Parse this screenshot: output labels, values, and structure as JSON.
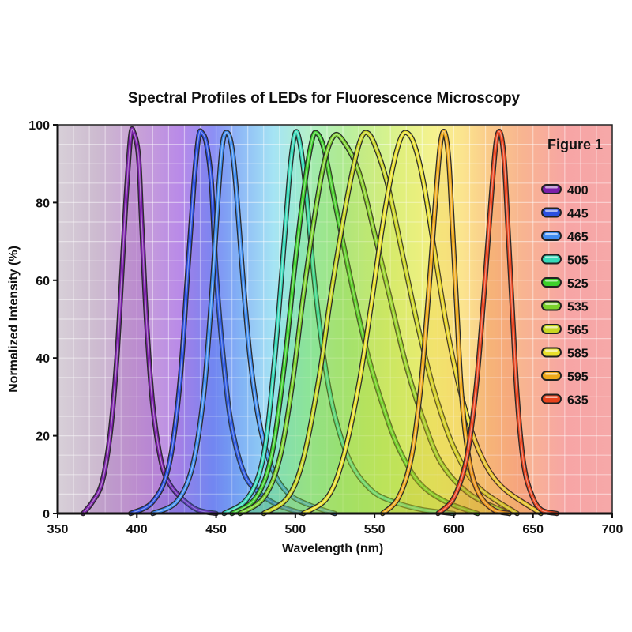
{
  "chart_data": {
    "type": "line",
    "title": "Spectral Profiles of LEDs for Fluorescence Microscopy",
    "figure_label": "Figure 1",
    "xlabel": "Wavelength (nm)",
    "ylabel": "Normalized Intensity (%)",
    "xlim": [
      350,
      700
    ],
    "ylim": [
      0,
      100
    ],
    "xticks": [
      "350",
      "400",
      "450",
      "500",
      "550",
      "600",
      "650",
      "700"
    ],
    "yticks": [
      "0",
      "20",
      "40",
      "60",
      "80",
      "100"
    ],
    "grid": true,
    "legend_position": "right",
    "background": "visible-spectrum gradient",
    "series": [
      {
        "name": "400",
        "color": "#7a1fa8",
        "x": [
          366,
          372,
          378,
          383,
          387,
          390,
          393,
          396,
          398,
          401,
          403,
          406,
          410,
          415,
          420,
          428,
          438,
          450
        ],
        "y": [
          0,
          3,
          8,
          20,
          38,
          58,
          80,
          97,
          98,
          92,
          75,
          50,
          28,
          14,
          8,
          4,
          1,
          0
        ]
      },
      {
        "name": "445",
        "color": "#2b4fe0",
        "x": [
          396,
          410,
          420,
          427,
          432,
          436,
          439,
          441,
          444,
          447,
          450,
          455,
          460,
          468,
          478,
          490,
          505
        ],
        "y": [
          0,
          3,
          12,
          33,
          62,
          85,
          97,
          98,
          95,
          85,
          62,
          38,
          22,
          10,
          5,
          2,
          0
        ]
      },
      {
        "name": "465",
        "color": "#3f8cf0",
        "x": [
          410,
          425,
          435,
          442,
          447,
          451,
          454,
          457,
          460,
          463,
          467,
          472,
          478,
          486,
          496,
          510,
          525
        ],
        "y": [
          0,
          3,
          12,
          30,
          55,
          80,
          95,
          98,
          94,
          82,
          60,
          38,
          22,
          11,
          5,
          2,
          0
        ]
      },
      {
        "name": "505",
        "color": "#35d9b8",
        "x": [
          455,
          470,
          480,
          487,
          493,
          497,
          500,
          503,
          507,
          512,
          518,
          525,
          535,
          548,
          562,
          580,
          600
        ],
        "y": [
          0,
          4,
          15,
          40,
          70,
          90,
          98,
          95,
          82,
          60,
          40,
          25,
          13,
          6,
          3,
          1,
          0
        ]
      },
      {
        "name": "525",
        "color": "#3ccf2a",
        "x": [
          460,
          475,
          485,
          493,
          500,
          506,
          510,
          513,
          518,
          525,
          535,
          545,
          555,
          565,
          578,
          595,
          615
        ],
        "y": [
          0,
          4,
          15,
          38,
          65,
          85,
          95,
          98,
          94,
          80,
          60,
          42,
          28,
          17,
          8,
          3,
          0
        ]
      },
      {
        "name": "535",
        "color": "#7ad12a",
        "x": [
          465,
          480,
          490,
          498,
          505,
          512,
          518,
          524,
          530,
          540,
          550,
          560,
          570,
          580,
          592,
          610,
          635
        ],
        "y": [
          0,
          4,
          14,
          33,
          56,
          76,
          90,
          97,
          96,
          88,
          72,
          55,
          38,
          25,
          13,
          5,
          0
        ]
      },
      {
        "name": "565",
        "color": "#c8d622",
        "x": [
          480,
          495,
          505,
          515,
          522,
          530,
          536,
          541,
          545,
          550,
          558,
          568,
          578,
          588,
          600,
          615,
          640
        ],
        "y": [
          0,
          4,
          14,
          35,
          55,
          75,
          88,
          96,
          98,
          95,
          85,
          66,
          47,
          31,
          17,
          7,
          0
        ]
      },
      {
        "name": "585",
        "color": "#e8e02c",
        "x": [
          505,
          520,
          530,
          540,
          548,
          555,
          561,
          566,
          570,
          575,
          581,
          588,
          596,
          605,
          616,
          630,
          655
        ],
        "y": [
          0,
          4,
          14,
          33,
          54,
          74,
          88,
          96,
          98,
          95,
          85,
          67,
          47,
          30,
          16,
          7,
          0
        ]
      },
      {
        "name": "595",
        "color": "#eea81a",
        "x": [
          555,
          565,
          573,
          579,
          584,
          588,
          591,
          593,
          595,
          597,
          599,
          602,
          605,
          610,
          616,
          625,
          635
        ],
        "y": [
          0,
          4,
          14,
          32,
          56,
          78,
          93,
          98,
          97,
          90,
          75,
          52,
          30,
          13,
          5,
          1,
          0
        ]
      },
      {
        "name": "635",
        "color": "#e8421c",
        "x": [
          590,
          600,
          608,
          614,
          619,
          623,
          626,
          628,
          630,
          632,
          634,
          637,
          640,
          644,
          649,
          655,
          665
        ],
        "y": [
          0,
          4,
          14,
          32,
          56,
          78,
          93,
          98,
          97,
          90,
          75,
          52,
          30,
          13,
          5,
          1,
          0
        ]
      }
    ]
  }
}
